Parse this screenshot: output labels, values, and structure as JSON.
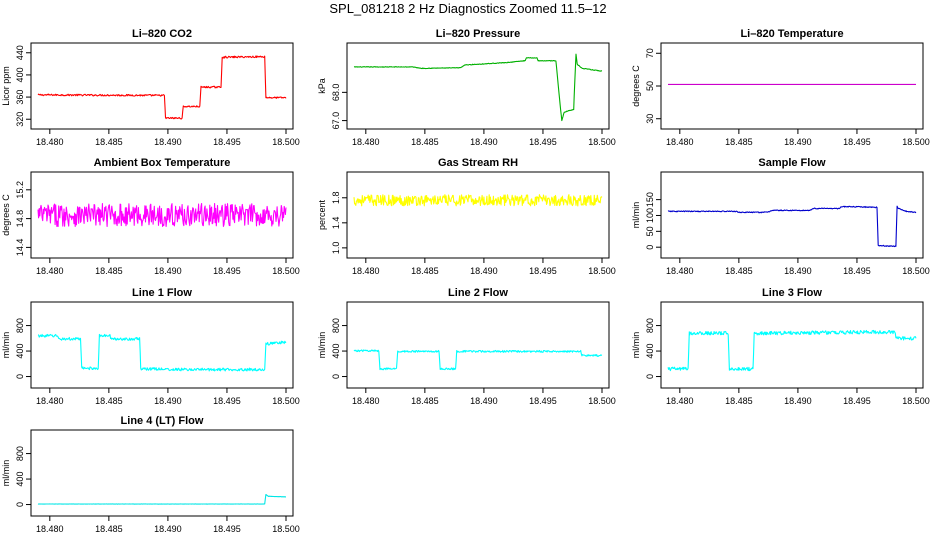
{
  "figure": {
    "title": "SPL_081218  2 Hz Diagnostics Zoomed 11.5–12"
  },
  "chart_data": [
    {
      "type": "line",
      "title": "Li–820 CO2",
      "xlabel": "",
      "ylabel": "Licor ppm",
      "xlim": [
        18.479,
        18.5
      ],
      "ylim": [
        315,
        445
      ],
      "xticks": [
        "18.480",
        "18.485",
        "18.490",
        "18.495",
        "18.500"
      ],
      "yticks": [
        "320",
        "360",
        "400",
        "440"
      ],
      "color": "#ff0000",
      "noise": 1.5,
      "x": [
        18.479,
        18.4897,
        18.4898,
        18.4912,
        18.4913,
        18.4927,
        18.4928,
        18.4945,
        18.4946,
        18.4982,
        18.4983,
        18.5
      ],
      "y": [
        364,
        363,
        322,
        322,
        343,
        343,
        378,
        378,
        432,
        433,
        359,
        359
      ]
    },
    {
      "type": "line",
      "title": "Li–820 Pressure",
      "xlabel": "",
      "ylabel": "kPa",
      "xlim": [
        18.479,
        18.5
      ],
      "ylim": [
        66.95,
        69.5
      ],
      "xticks": [
        "18.480",
        "18.485",
        "18.490",
        "18.495",
        "18.500"
      ],
      "yticks": [
        "67.0",
        "68.0"
      ],
      "color": "#00b000",
      "noise": 0.01,
      "x": [
        18.479,
        18.484,
        18.4847,
        18.488,
        18.4884,
        18.4917,
        18.4918,
        18.4935,
        18.4936,
        18.4945,
        18.4946,
        18.4961,
        18.4965,
        18.4966,
        18.4968,
        18.4976,
        18.4978,
        18.4979,
        18.4983,
        18.5
      ],
      "y": [
        68.9,
        68.9,
        68.85,
        68.87,
        68.97,
        69.05,
        69.05,
        69.12,
        69.22,
        69.22,
        69.12,
        69.12,
        67.35,
        67.0,
        67.3,
        67.4,
        69.35,
        69.0,
        68.85,
        68.75
      ]
    },
    {
      "type": "line",
      "title": "Li–820 Temperature",
      "xlabel": "",
      "ylabel": "degrees C",
      "xlim": [
        18.479,
        18.5
      ],
      "ylim": [
        28,
        72
      ],
      "xticks": [
        "18.480",
        "18.485",
        "18.490",
        "18.495",
        "18.500"
      ],
      "yticks": [
        "30",
        "50",
        "70"
      ],
      "color": "#cc00cc",
      "noise": 0,
      "x": [
        18.479,
        18.5
      ],
      "y": [
        51.0,
        51.0
      ]
    },
    {
      "type": "line",
      "title": "Ambient Box Temperature",
      "xlabel": "",
      "ylabel": "degrees C",
      "xlim": [
        18.479,
        18.5
      ],
      "ylim": [
        14.35,
        15.35
      ],
      "xticks": [
        "18.480",
        "18.485",
        "18.490",
        "18.495",
        "18.500"
      ],
      "yticks": [
        "14.4",
        "14.8",
        "15.2"
      ],
      "color": "#ff00ff",
      "noise": 0.16,
      "x": [
        18.479,
        18.5
      ],
      "y": [
        14.85,
        14.85
      ]
    },
    {
      "type": "line",
      "title": "Gas Stream RH",
      "xlabel": "",
      "ylabel": "percent",
      "xlim": [
        18.479,
        18.5
      ],
      "ylim": [
        0.95,
        2.1
      ],
      "xticks": [
        "18.480",
        "18.485",
        "18.490",
        "18.495",
        "18.500"
      ],
      "yticks": [
        "1.0",
        "1.4",
        "1.8"
      ],
      "color": "#ffff00",
      "noise": 0.09,
      "x": [
        18.479,
        18.5
      ],
      "y": [
        1.76,
        1.76
      ]
    },
    {
      "type": "line",
      "title": "Sample Flow",
      "xlabel": "",
      "ylabel": "ml/min",
      "xlim": [
        18.479,
        18.5
      ],
      "ylim": [
        -12,
        215
      ],
      "xticks": [
        "18.480",
        "18.485",
        "18.490",
        "18.495",
        "18.500"
      ],
      "yticks": [
        "0",
        "50",
        "100",
        "150"
      ],
      "color": "#0000cc",
      "noise": 1.5,
      "x": [
        18.479,
        18.4847,
        18.485,
        18.4874,
        18.4878,
        18.491,
        18.4913,
        18.4935,
        18.4937,
        18.4967,
        18.4968,
        18.4983,
        18.4984,
        18.4985,
        18.4993,
        18.5
      ],
      "y": [
        113,
        113,
        110,
        110,
        116,
        116,
        122,
        122,
        128,
        126,
        5,
        3,
        130,
        122,
        112,
        110
      ]
    },
    {
      "type": "line",
      "title": "Line 1 Flow",
      "xlabel": "",
      "ylabel": "ml/min",
      "xlim": [
        18.479,
        18.5
      ],
      "ylim": [
        -70,
        1060
      ],
      "xticks": [
        "18.480",
        "18.485",
        "18.490",
        "18.495",
        "18.500"
      ],
      "yticks": [
        "0",
        "400",
        "800"
      ],
      "color": "#00ffff",
      "noise": 22,
      "x": [
        18.479,
        18.4806,
        18.4808,
        18.4826,
        18.4827,
        18.4841,
        18.4842,
        18.4851,
        18.4852,
        18.4876,
        18.4877,
        18.4897,
        18.4898,
        18.4982,
        18.4983,
        18.5
      ],
      "y": [
        640,
        640,
        590,
        590,
        130,
        130,
        640,
        640,
        590,
        590,
        120,
        120,
        110,
        110,
        510,
        540
      ]
    },
    {
      "type": "line",
      "title": "Line 2 Flow",
      "xlabel": "",
      "ylabel": "ml/min",
      "xlim": [
        18.479,
        18.5
      ],
      "ylim": [
        -70,
        1060
      ],
      "xticks": [
        "18.480",
        "18.485",
        "18.490",
        "18.495",
        "18.500"
      ],
      "yticks": [
        "0",
        "400",
        "800"
      ],
      "color": "#00ffff",
      "noise": 14,
      "x": [
        18.479,
        18.4811,
        18.4812,
        18.4826,
        18.4827,
        18.4862,
        18.4863,
        18.4876,
        18.4877,
        18.4982,
        18.4983,
        18.5
      ],
      "y": [
        405,
        405,
        120,
        120,
        395,
        395,
        120,
        120,
        395,
        395,
        330,
        330
      ]
    },
    {
      "type": "line",
      "title": "Line 3 Flow",
      "xlabel": "",
      "ylabel": "ml/min",
      "xlim": [
        18.479,
        18.5
      ],
      "ylim": [
        -70,
        1060
      ],
      "xticks": [
        "18.480",
        "18.485",
        "18.490",
        "18.495",
        "18.500"
      ],
      "yticks": [
        "0",
        "400",
        "800"
      ],
      "color": "#00ffff",
      "noise": 28,
      "x": [
        18.479,
        18.4807,
        18.4808,
        18.4841,
        18.4842,
        18.4862,
        18.4863,
        18.4982,
        18.4983,
        18.5
      ],
      "y": [
        120,
        120,
        680,
        680,
        120,
        120,
        680,
        700,
        600,
        600
      ]
    },
    {
      "type": "line",
      "title": "Line 4 (LT) Flow",
      "xlabel": "",
      "ylabel": "ml/min",
      "xlim": [
        18.479,
        18.5
      ],
      "ylim": [
        -70,
        1060
      ],
      "xticks": [
        "18.480",
        "18.485",
        "18.490",
        "18.495",
        "18.500"
      ],
      "yticks": [
        "0",
        "400",
        "800"
      ],
      "color": "#00e6e6",
      "noise": 2,
      "x": [
        18.479,
        18.4982,
        18.4983,
        18.4985,
        18.5
      ],
      "y": [
        8,
        8,
        160,
        130,
        120
      ]
    }
  ]
}
